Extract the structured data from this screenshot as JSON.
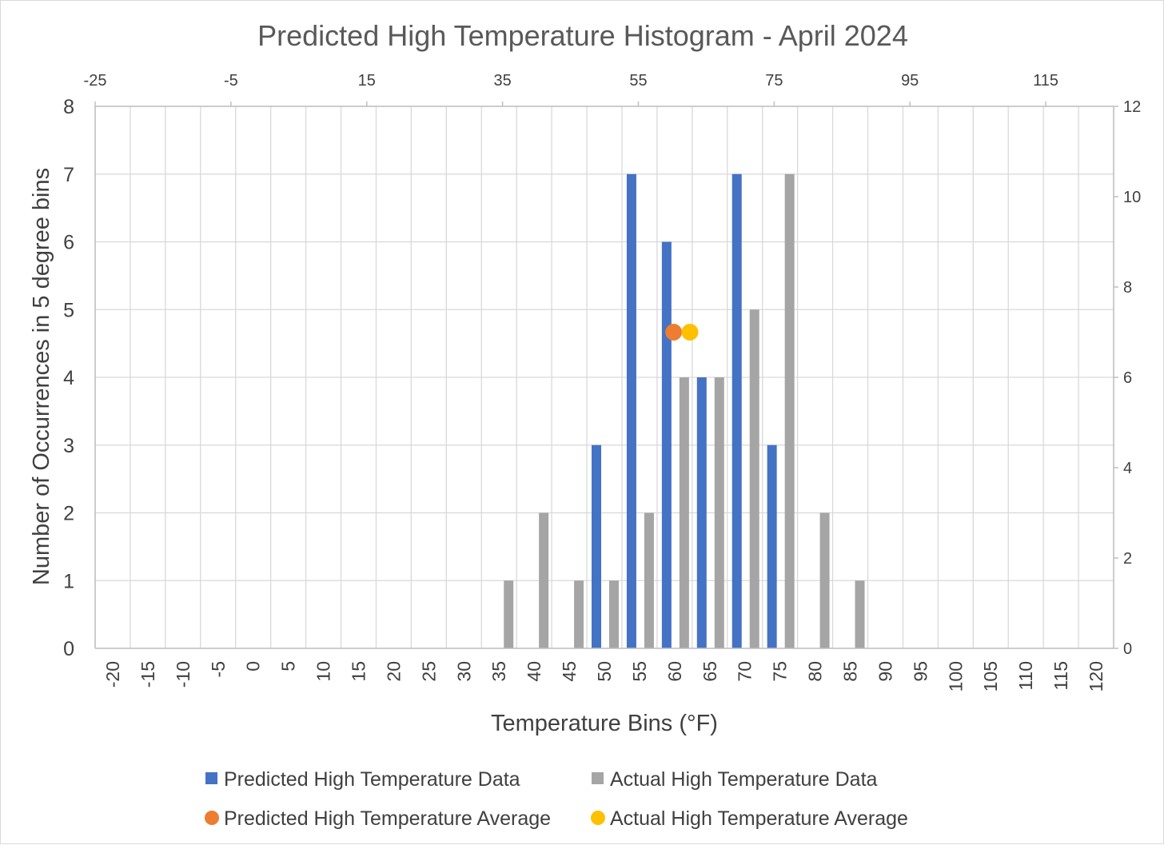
{
  "chart_data": {
    "type": "bar",
    "title": "Predicted High Temperature Histogram - April 2024",
    "xlabel": "Temperature Bins (°F)",
    "ylabel": "Number of Occurrences in 5 degree bins",
    "categories": [
      "-20",
      "-15",
      "-10",
      "-5",
      "0",
      "5",
      "10",
      "15",
      "20",
      "25",
      "30",
      "35",
      "40",
      "45",
      "50",
      "55",
      "60",
      "65",
      "70",
      "75",
      "80",
      "85",
      "90",
      "95",
      "100",
      "105",
      "110",
      "115",
      "120"
    ],
    "ylim": [
      0,
      8
    ],
    "yticks": [
      0,
      1,
      2,
      3,
      4,
      5,
      6,
      7,
      8
    ],
    "y2lim": [
      0,
      12
    ],
    "y2ticks": [
      0,
      2,
      4,
      6,
      8,
      10,
      12
    ],
    "x2lim": [
      -25,
      125
    ],
    "x2ticks": [
      -25,
      -5,
      15,
      35,
      55,
      75,
      95,
      115
    ],
    "grid": true,
    "legend_position": "bottom",
    "series": [
      {
        "name": "Predicted High Temperature Data",
        "color": "#4472C4",
        "values": [
          0,
          0,
          0,
          0,
          0,
          0,
          0,
          0,
          0,
          0,
          0,
          0,
          0,
          0,
          3,
          7,
          6,
          4,
          7,
          3,
          0,
          0,
          0,
          0,
          0,
          0,
          0,
          0,
          0
        ]
      },
      {
        "name": "Actual High Temperature Data",
        "color": "#A5A5A5",
        "values": [
          0,
          0,
          0,
          0,
          0,
          0,
          0,
          0,
          0,
          0,
          0,
          1,
          2,
          1,
          1,
          2,
          4,
          4,
          5,
          7,
          2,
          1,
          0,
          0,
          0,
          0,
          0,
          0,
          0
        ]
      }
    ],
    "averages": [
      {
        "name": "Predicted High Temperature Average",
        "color": "#ED7D31",
        "x": 60.2,
        "y2": 7
      },
      {
        "name": "Actual High Temperature Average",
        "color": "#FFC000",
        "x": 62.6,
        "y2": 7
      }
    ]
  }
}
